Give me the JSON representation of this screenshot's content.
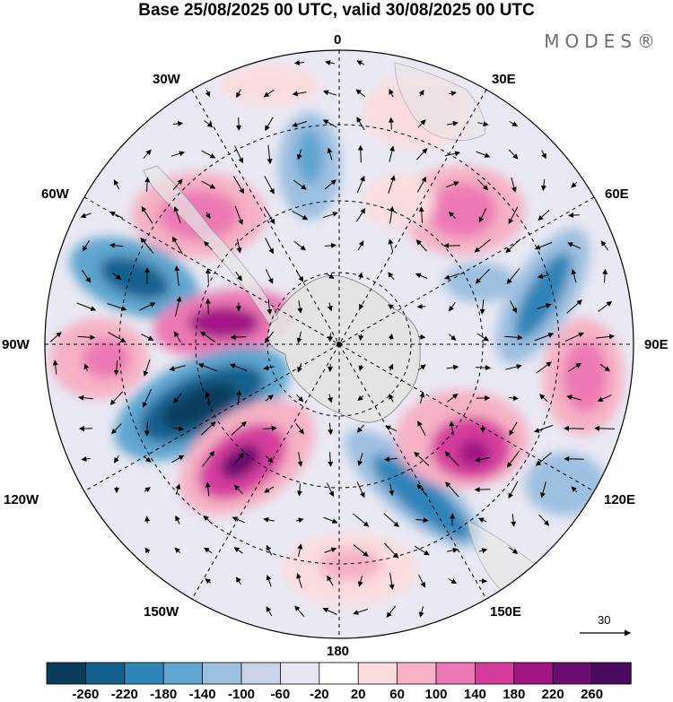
{
  "header": {
    "title": "Base 25/08/2025 00 UTC, valid 30/08/2025 00 UTC",
    "brand": "MODES®"
  },
  "map": {
    "projection": "south-polar-stereographic",
    "longitude_labels": {
      "top": "0",
      "top_left": "30W",
      "top_right": "30E",
      "upper_left": "60W",
      "upper_right": "60E",
      "left": "90W",
      "right": "90E",
      "lower_left": "120W",
      "lower_right": "120E",
      "bottom_left": "150W",
      "bottom_right": "150E",
      "bottom": "180"
    },
    "reference_vector_label": "30"
  },
  "colorbar": {
    "labels": [
      "-260",
      "-220",
      "-180",
      "-140",
      "-100",
      "-60",
      "-20",
      "20",
      "60",
      "100",
      "140",
      "180",
      "220",
      "260"
    ],
    "colors": [
      "#0a3d5c",
      "#13608f",
      "#2f84b8",
      "#5ea5cf",
      "#9dbfe0",
      "#c8d3ea",
      "#e6e6f2",
      "#ffffff",
      "#fbdcde",
      "#f6b1c4",
      "#ec79b3",
      "#d43c9c",
      "#a21585",
      "#6b0c70",
      "#4a0a5e"
    ]
  },
  "chart_data": {
    "type": "heatmap",
    "title": "Base 25/08/2025 00 UTC, valid 30/08/2025 00 UTC",
    "variable_range": [
      -260,
      260
    ],
    "anomaly_centers": [
      {
        "lon": "40E",
        "lat_band": "mid",
        "value": 140
      },
      {
        "lon": "40W",
        "lat_band": "mid",
        "value": 140
      },
      {
        "lon": "60W",
        "lat_band": "outer",
        "value": -220
      },
      {
        "lon": "80W",
        "lat_band": "mid",
        "value": 180
      },
      {
        "lon": "95W",
        "lat_band": "outer",
        "value": 100
      },
      {
        "lon": "110W",
        "lat_band": "mid",
        "value": -260
      },
      {
        "lon": "140W",
        "lat_band": "mid",
        "value": 220
      },
      {
        "lon": "175W",
        "lat_band": "outer",
        "value": 60
      },
      {
        "lon": "160E",
        "lat_band": "mid",
        "value": -180
      },
      {
        "lon": "125E",
        "lat_band": "mid",
        "value": 220
      },
      {
        "lon": "95E",
        "lat_band": "outer",
        "value": 140
      },
      {
        "lon": "120E",
        "lat_band": "outer",
        "value": -100
      },
      {
        "lon": "70E",
        "lat_band": "mid",
        "value": -140
      },
      {
        "lon": "5W",
        "lat_band": "mid",
        "value": -100
      }
    ]
  }
}
